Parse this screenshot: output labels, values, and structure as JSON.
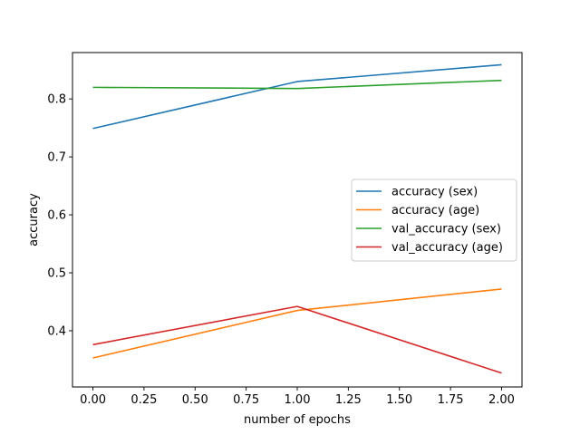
{
  "chart_data": {
    "type": "line",
    "title": "",
    "xlabel": "number of epochs",
    "ylabel": "accuracy",
    "xlim": [
      -0.1,
      2.1
    ],
    "ylim": [
      0.303,
      0.88
    ],
    "xticks": [
      0.0,
      0.25,
      0.5,
      0.75,
      1.0,
      1.25,
      1.5,
      1.75,
      2.0
    ],
    "xtick_labels": [
      "0.00",
      "0.25",
      "0.50",
      "0.75",
      "1.00",
      "1.25",
      "1.50",
      "1.75",
      "2.00"
    ],
    "yticks": [
      0.4,
      0.5,
      0.6,
      0.7,
      0.8
    ],
    "ytick_labels": [
      "0.4",
      "0.5",
      "0.6",
      "0.7",
      "0.8"
    ],
    "grid": false,
    "legend_position": "center-right",
    "x": [
      0,
      1,
      2
    ],
    "series": [
      {
        "name": "accuracy (sex)",
        "color": "#1f77b4",
        "values": [
          0.749,
          0.83,
          0.859
        ]
      },
      {
        "name": "accuracy (age)",
        "color": "#ff7f0e",
        "values": [
          0.353,
          0.435,
          0.472
        ]
      },
      {
        "name": "val_accuracy (sex)",
        "color": "#2ca02c",
        "values": [
          0.82,
          0.818,
          0.832
        ]
      },
      {
        "name": "val_accuracy (age)",
        "color": "#d62728",
        "values": [
          0.376,
          0.442,
          0.327
        ]
      }
    ]
  }
}
